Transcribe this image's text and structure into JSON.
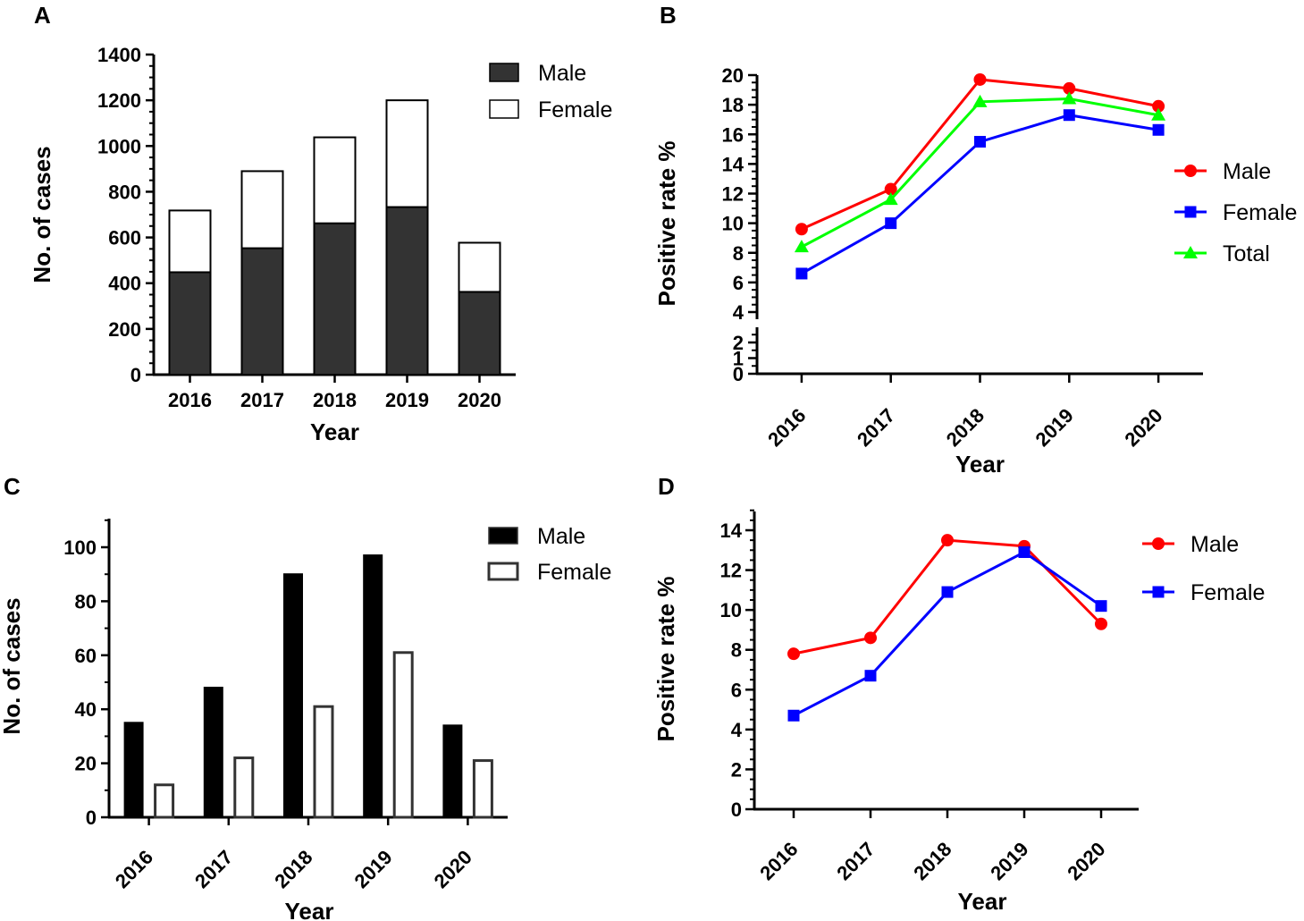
{
  "chart_data": [
    {
      "panel": "A",
      "type": "bar",
      "stacked": true,
      "categories": [
        "2016",
        "2017",
        "2018",
        "2019",
        "2020"
      ],
      "series": [
        {
          "name": "Male",
          "values": [
            448,
            553,
            662,
            733,
            362
          ],
          "color": "#333333"
        },
        {
          "name": "Female",
          "values": [
            270,
            337,
            376,
            467,
            215
          ],
          "color": "#ffffff"
        }
      ],
      "xlabel": "Year",
      "ylabel": "No. of cases",
      "ylim": [
        0,
        1400
      ],
      "yticks": [
        0,
        200,
        400,
        600,
        800,
        1000,
        1200,
        1400
      ],
      "yticklabels": [
        "0",
        "200",
        "400",
        "600",
        "800",
        "1000",
        "1200",
        "1400"
      ],
      "legend": "top-right"
    },
    {
      "panel": "B",
      "type": "line",
      "categories": [
        "2016",
        "2017",
        "2018",
        "2019",
        "2020"
      ],
      "series": [
        {
          "name": "Male",
          "values": [
            9.6,
            12.3,
            19.7,
            19.1,
            17.9
          ],
          "color": "#ff0000",
          "marker": "circle"
        },
        {
          "name": "Female",
          "values": [
            6.6,
            10.0,
            15.5,
            17.3,
            16.3
          ],
          "color": "#0000ff",
          "marker": "square"
        },
        {
          "name": "Total",
          "values": [
            8.4,
            11.6,
            18.2,
            18.4,
            17.3
          ],
          "color": "#00ff00",
          "marker": "triangle"
        }
      ],
      "xlabel": "Year",
      "ylabel": "Positive rate %",
      "ylim": [
        0,
        20
      ],
      "axis_break": [
        3,
        4
      ],
      "yticks": [
        0,
        1,
        2,
        4,
        6,
        8,
        10,
        12,
        14,
        16,
        18,
        20
      ],
      "yticklabels": [
        "0",
        "1",
        "2",
        "4",
        "6",
        "8",
        "10",
        "12",
        "14",
        "16",
        "18",
        "20"
      ],
      "legend": "right"
    },
    {
      "panel": "C",
      "type": "bar",
      "grouped": true,
      "categories": [
        "2016",
        "2017",
        "2018",
        "2019",
        "2020"
      ],
      "series": [
        {
          "name": "Male",
          "values": [
            35,
            48,
            90,
            97,
            34
          ],
          "color": "#000000"
        },
        {
          "name": "Female",
          "values": [
            12,
            22,
            41,
            61,
            21
          ],
          "color": "#ffffff"
        }
      ],
      "xlabel": "Year",
      "ylabel": "No. of cases",
      "ylim": [
        0,
        110
      ],
      "yticks": [
        0,
        20,
        40,
        60,
        80,
        100
      ],
      "yticklabels": [
        "0",
        "20",
        "40",
        "60",
        "80",
        "100"
      ],
      "legend": "top-right"
    },
    {
      "panel": "D",
      "type": "line",
      "categories": [
        "2016",
        "2017",
        "2018",
        "2019",
        "2020"
      ],
      "series": [
        {
          "name": "Male",
          "values": [
            7.8,
            8.6,
            13.5,
            13.2,
            9.3
          ],
          "color": "#ff0000",
          "marker": "circle"
        },
        {
          "name": "Female",
          "values": [
            4.7,
            6.7,
            10.9,
            12.9,
            10.2
          ],
          "color": "#0000ff",
          "marker": "square"
        }
      ],
      "xlabel": "Year",
      "ylabel": "Positive rate %",
      "ylim": [
        0,
        15
      ],
      "yticks": [
        0,
        2,
        4,
        6,
        8,
        10,
        12,
        14
      ],
      "yticklabels": [
        "0",
        "2",
        "4",
        "6",
        "8",
        "10",
        "12",
        "14"
      ],
      "legend": "top-right"
    }
  ]
}
